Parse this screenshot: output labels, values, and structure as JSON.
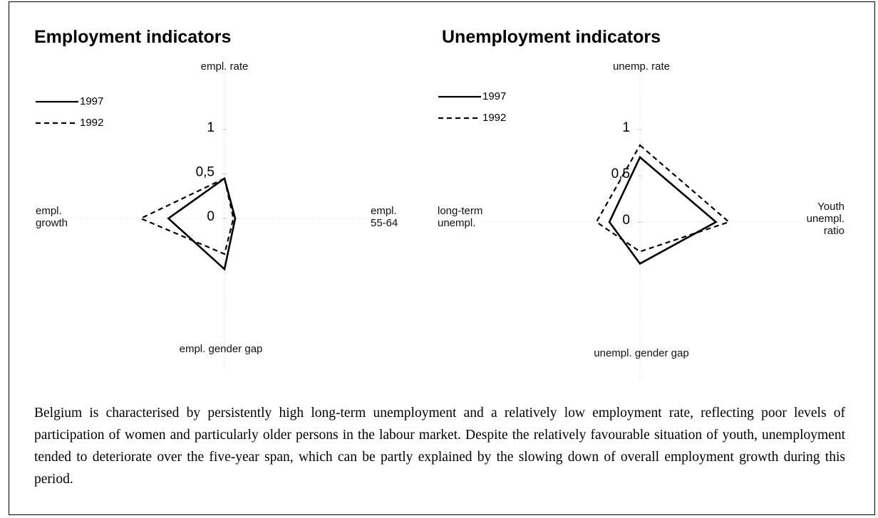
{
  "chart_data": [
    {
      "type": "radar",
      "title": "Employment indicators",
      "axes": [
        "empl. rate",
        "empl. 55-64",
        "empl. gender gap",
        "empl. growth"
      ],
      "rlim": [
        0,
        1
      ],
      "rticks": [
        0,
        {
          "value": 0.5,
          "label": "0,5"
        },
        1
      ],
      "series": [
        {
          "name": "1997",
          "color": "#000000",
          "line_style": "solid",
          "values": [
            0.45,
            0.12,
            0.57,
            0.63
          ]
        },
        {
          "name": "1992",
          "color": "#000000",
          "line_style": "dashed",
          "values": [
            0.45,
            0.1,
            0.4,
            0.94
          ]
        }
      ]
    },
    {
      "type": "radar",
      "title": "Unemployment indicators",
      "axes": [
        "unemp. rate",
        "Youth unempl. ratio",
        "unempl. gender gap",
        "long-term unempl."
      ],
      "rlim": [
        0,
        1
      ],
      "rticks": [
        0,
        {
          "value": 0.5,
          "label": "0,5"
        },
        1
      ],
      "series": [
        {
          "name": "1997",
          "color": "#000000",
          "line_style": "solid",
          "values": [
            0.7,
            0.82,
            0.45,
            0.33
          ]
        },
        {
          "name": "1992",
          "color": "#000000",
          "line_style": "dashed",
          "values": [
            0.83,
            0.96,
            0.32,
            0.47
          ]
        }
      ]
    }
  ],
  "caption": "Belgium is characterised by persistently high long-term unemployment and a relatively low employment rate, reflecting poor levels of participation of women and particularly older persons in the labour market. Despite the relatively favourable situation of youth, unemployment tended to deteriorate over the five-year span, which can be partly explained by the slowing down of overall employment growth during this period."
}
